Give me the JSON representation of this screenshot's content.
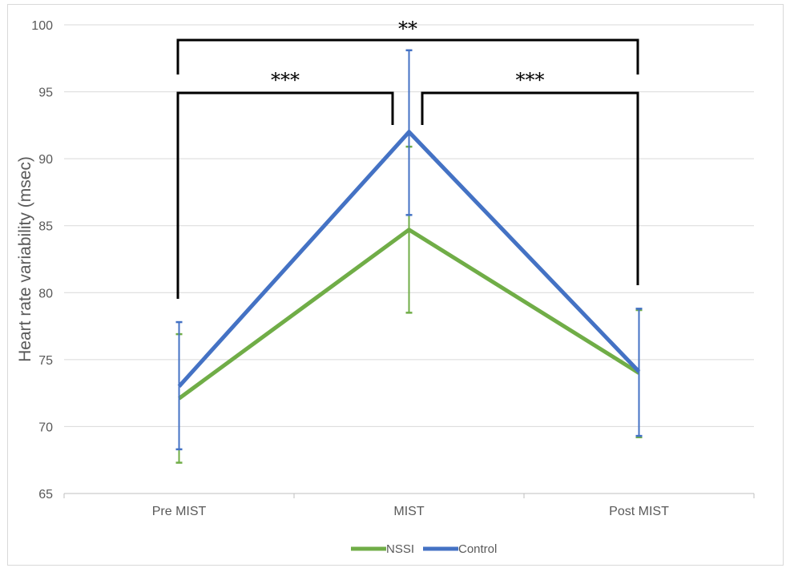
{
  "chart_data": {
    "type": "line",
    "title": "",
    "xlabel": "",
    "ylabel": "Heart rate variability (msec)",
    "ylim": [
      65,
      100
    ],
    "yticks": [
      65,
      70,
      75,
      80,
      85,
      90,
      95,
      100
    ],
    "grid": "horizontal",
    "legend_position": "bottom",
    "categories": [
      "Pre MIST",
      "MIST",
      "Post MIST"
    ],
    "series": [
      {
        "name": "NSSI",
        "color": "#70ad47",
        "values": [
          72.1,
          84.7,
          74.0
        ],
        "error_low": [
          67.3,
          78.5,
          69.2
        ],
        "error_high": [
          76.9,
          90.9,
          78.7
        ]
      },
      {
        "name": "Control",
        "color": "#4472c4",
        "values": [
          73.0,
          92.0,
          74.1
        ],
        "error_low": [
          68.3,
          85.8,
          69.3
        ],
        "error_high": [
          77.8,
          98.1,
          78.8
        ]
      }
    ],
    "significance": [
      {
        "from": "Pre MIST",
        "to": "MIST",
        "label": "***"
      },
      {
        "from": "MIST",
        "to": "Post MIST",
        "label": "***"
      },
      {
        "from": "Pre MIST",
        "to": "Post MIST",
        "label": "**"
      }
    ]
  }
}
